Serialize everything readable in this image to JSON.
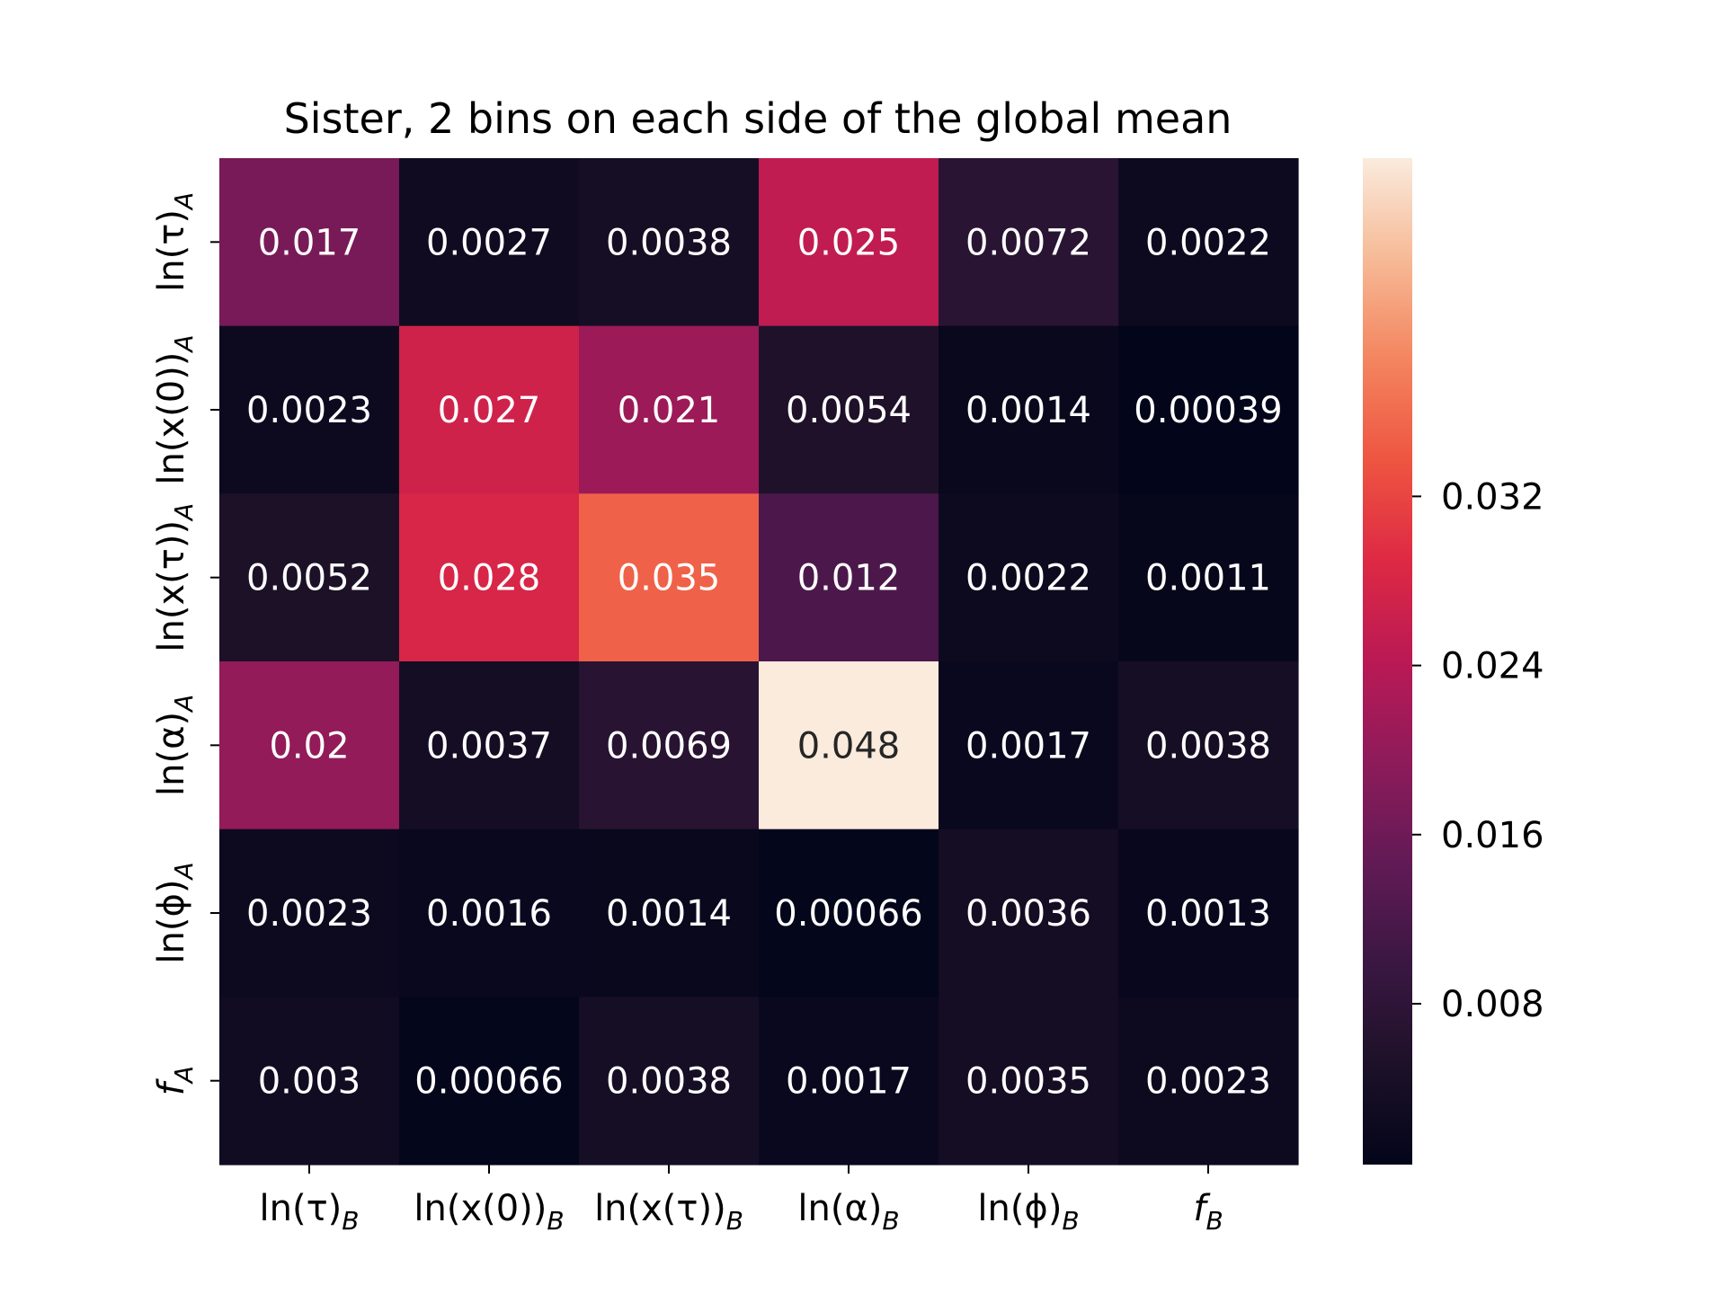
{
  "chart_data": {
    "type": "heatmap",
    "title": "Sister, 2 bins on each side of the global mean",
    "x_labels": [
      {
        "base": "ln(τ)",
        "sub": "B"
      },
      {
        "base": "ln(x(0))",
        "sub": "B"
      },
      {
        "base": "ln(x(τ))",
        "sub": "B"
      },
      {
        "base": "ln(α)",
        "sub": "B"
      },
      {
        "base": "ln(ϕ)",
        "sub": "B"
      },
      {
        "base": "f",
        "sub": "B"
      }
    ],
    "y_labels": [
      {
        "base": "ln(τ)",
        "sub": "A"
      },
      {
        "base": "ln(x(0))",
        "sub": "A"
      },
      {
        "base": "ln(x(τ))",
        "sub": "A"
      },
      {
        "base": "ln(α)",
        "sub": "A"
      },
      {
        "base": "ln(ϕ)",
        "sub": "A"
      },
      {
        "base": "f",
        "sub": "A"
      }
    ],
    "values": [
      [
        "0.017",
        "0.0027",
        "0.0038",
        "0.025",
        "0.0072",
        "0.0022"
      ],
      [
        "0.0023",
        "0.027",
        "0.021",
        "0.0054",
        "0.0014",
        "0.00039"
      ],
      [
        "0.0052",
        "0.028",
        "0.035",
        "0.012",
        "0.0022",
        "0.0011"
      ],
      [
        "0.02",
        "0.0037",
        "0.0069",
        "0.048",
        "0.0017",
        "0.0038"
      ],
      [
        "0.0023",
        "0.0016",
        "0.0014",
        "0.00066",
        "0.0036",
        "0.0013"
      ],
      [
        "0.003",
        "0.00066",
        "0.0038",
        "0.0017",
        "0.0035",
        "0.0023"
      ]
    ],
    "colorbar": {
      "colormap": "rocket",
      "vmin": 0.00039,
      "vmax": 0.048,
      "ticks": [
        "0.008",
        "0.016",
        "0.024",
        "0.032"
      ]
    }
  }
}
